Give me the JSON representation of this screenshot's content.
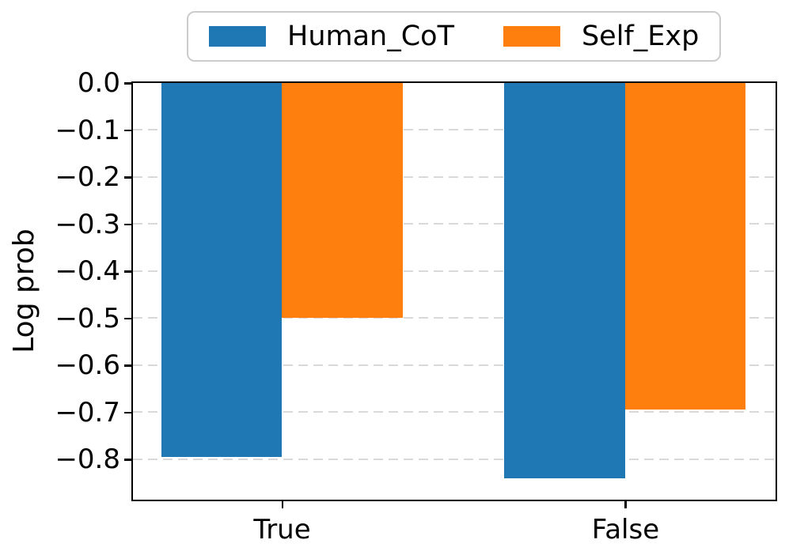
{
  "figure": {
    "background": "#ffffff"
  },
  "chart_data": {
    "type": "bar",
    "categories": [
      "True",
      "False"
    ],
    "series": [
      {
        "name": "Human_CoT",
        "color": "#1f77b4",
        "values": [
          -0.795,
          -0.84
        ]
      },
      {
        "name": "Self_Exp",
        "color": "#ff7f0e",
        "values": [
          -0.5,
          -0.695
        ]
      }
    ],
    "title": "",
    "xlabel": "",
    "ylabel": "Log prob",
    "ylim": [
      -0.885,
      0
    ],
    "yticks": [
      0.0,
      -0.1,
      -0.2,
      -0.3,
      -0.4,
      -0.5,
      -0.6,
      -0.7,
      -0.8
    ],
    "ytick_labels": [
      "0.0",
      "−0.1",
      "−0.2",
      "−0.3",
      "−0.4",
      "−0.5",
      "−0.6",
      "−0.7",
      "−0.8"
    ],
    "grid": true,
    "grid_color": "#d9d9d9",
    "axis_color": "#000000",
    "legend_position": "top-center"
  }
}
